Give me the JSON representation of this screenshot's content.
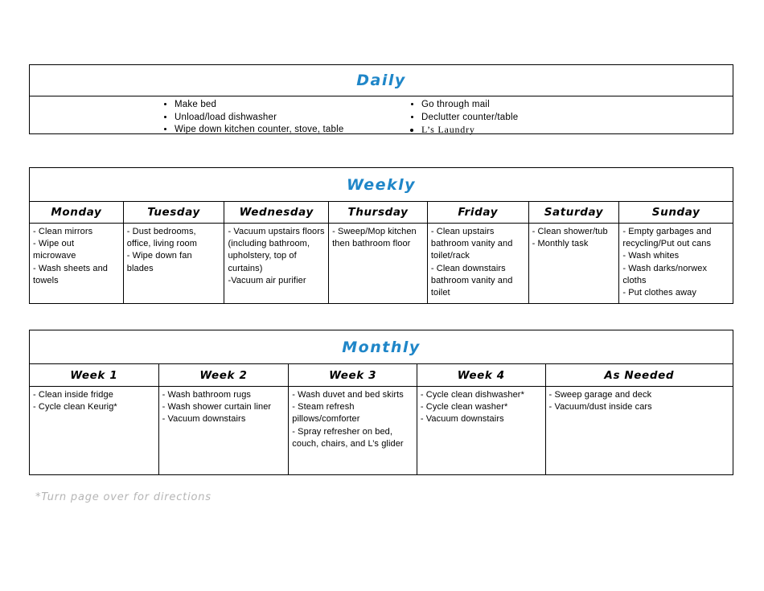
{
  "colors": {
    "accent_blue": "#1f86c8",
    "footer_gray": "#b5b5b5",
    "border": "#000000"
  },
  "daily": {
    "title": "Daily",
    "left_items": [
      "Make bed",
      "Unload/load dishwasher",
      "Wipe down kitchen counter, stove, table"
    ],
    "right_items": [
      "Go through mail",
      "Declutter counter/table",
      "L’s Laundry"
    ]
  },
  "weekly": {
    "title": "Weekly",
    "columns": [
      {
        "label": "Monday",
        "items": [
          "- Clean mirrors",
          "- Wipe out microwave",
          "- Wash sheets and towels"
        ]
      },
      {
        "label": "Tuesday",
        "items": [
          "- Dust bedrooms, office, living room",
          "- Wipe down fan blades"
        ]
      },
      {
        "label": "Wednesday",
        "items": [
          "- Vacuum upstairs floors (including bathroom, upholstery, top of curtains)",
          "-Vacuum air purifier"
        ]
      },
      {
        "label": "Thursday",
        "items": [
          "- Sweep/Mop kitchen then bathroom floor"
        ]
      },
      {
        "label": "Friday",
        "items": [
          "- Clean upstairs bathroom vanity and toilet/rack",
          "- Clean downstairs bathroom vanity and toilet"
        ]
      },
      {
        "label": "Saturday",
        "items": [
          "- Clean shower/tub",
          "- Monthly task"
        ]
      },
      {
        "label": "Sunday",
        "items": [
          "- Empty garbages and recycling/Put out cans",
          "- Wash whites",
          "- Wash darks/norwex cloths",
          "- Put clothes away"
        ]
      }
    ]
  },
  "monthly": {
    "title": "Monthly",
    "columns": [
      {
        "label": "Week 1",
        "items": [
          "- Clean inside fridge",
          "- Cycle clean Keurig*"
        ]
      },
      {
        "label": "Week 2",
        "items": [
          "- Wash bathroom rugs",
          "- Wash shower curtain liner",
          "- Vacuum downstairs"
        ]
      },
      {
        "label": "Week 3",
        "items": [
          "- Wash duvet and bed skirts",
          "- Steam refresh pillows/comforter",
          "- Spray refresher on bed, couch, chairs, and L’s glider"
        ]
      },
      {
        "label": "Week 4",
        "items": [
          "- Cycle clean dishwasher*",
          "- Cycle clean washer*",
          "- Vacuum downstairs"
        ]
      },
      {
        "label": "As Needed",
        "items": [
          "- Sweep garage and deck",
          "- Vacuum/dust inside cars"
        ]
      }
    ]
  },
  "footer": {
    "note": "*Turn page over for directions"
  }
}
